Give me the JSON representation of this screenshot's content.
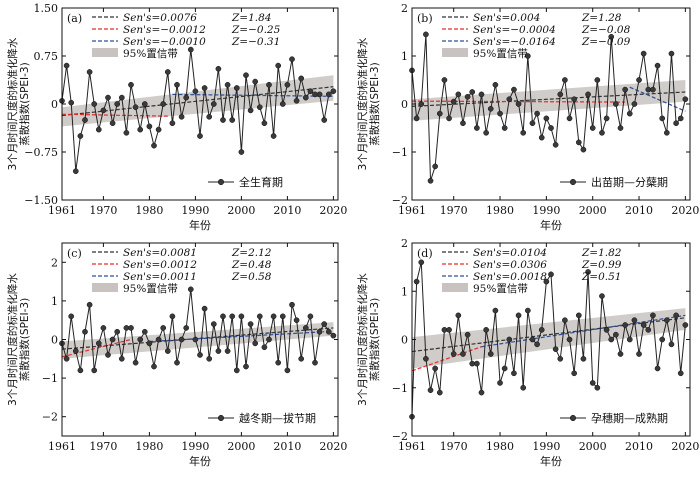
{
  "chart_data": [
    {
      "type": "line",
      "panel_label": "(a)",
      "xlabel": "年份",
      "ylabel": [
        "3个月时间尺度的标准化降水",
        "蒸散指数(SPEI-3)"
      ],
      "xlim": [
        1961,
        2021
      ],
      "ylim": [
        -1.5,
        1.5
      ],
      "xticks": [
        1961,
        1970,
        1980,
        1990,
        2000,
        2010,
        2020
      ],
      "xtick_labels": [
        "1961",
        "1970",
        "1980",
        "1990",
        "2000",
        "2010",
        "2020"
      ],
      "yticks": [
        -1.5,
        -0.75,
        0,
        0.75,
        1.5
      ],
      "ytick_labels": [
        "−1.50",
        "−0.75",
        "0",
        "0.75",
        "1.50"
      ],
      "series_name": "全生育期",
      "x": [
        1961,
        1962,
        1963,
        1964,
        1965,
        1966,
        1967,
        1968,
        1969,
        1970,
        1971,
        1972,
        1973,
        1974,
        1975,
        1976,
        1977,
        1978,
        1979,
        1980,
        1981,
        1982,
        1983,
        1984,
        1985,
        1986,
        1987,
        1988,
        1989,
        1990,
        1991,
        1992,
        1993,
        1994,
        1995,
        1996,
        1997,
        1998,
        1999,
        2000,
        2001,
        2002,
        2003,
        2004,
        2005,
        2006,
        2007,
        2008,
        2009,
        2010,
        2011,
        2012,
        2013,
        2014,
        2015,
        2016,
        2017,
        2018,
        2019,
        2020
      ],
      "y": [
        0.05,
        0.6,
        0.02,
        -1.05,
        -0.5,
        -0.25,
        0.5,
        0.0,
        -0.4,
        -0.1,
        0.1,
        -0.3,
        0.0,
        0.1,
        -0.45,
        0.3,
        -0.05,
        -0.4,
        0.0,
        -0.35,
        -0.65,
        -0.4,
        0.0,
        0.5,
        -0.3,
        0.3,
        -0.2,
        0.1,
        0.85,
        0.2,
        -0.5,
        0.25,
        -0.2,
        0.0,
        0.55,
        -0.25,
        0.3,
        -0.25,
        0.25,
        -0.75,
        0.45,
        -0.1,
        0.35,
        -0.05,
        -0.3,
        0.3,
        -0.5,
        0.6,
        0.0,
        0.3,
        0.7,
        0.05,
        0.4,
        0.1,
        0.2,
        0.15,
        0.15,
        -0.25,
        0.15,
        0.2
      ],
      "legend": [
        {
          "name": "Sen's=0.0076",
          "z": "Z=1.84",
          "color": "#333333"
        },
        {
          "name": "Sen's=−0.0012",
          "z": "Z=−0.25",
          "color": "#e0302b"
        },
        {
          "name": "Sen's=−0.0010",
          "z": "Z=−0.31",
          "color": "#2c4f9e"
        }
      ],
      "trends": [
        {
          "color": "#333333",
          "x": [
            1961,
            2020
          ],
          "y": [
            -0.18,
            0.27
          ]
        },
        {
          "color": "#e0302b",
          "x": [
            1961,
            1984
          ],
          "y": [
            -0.16,
            -0.19
          ]
        },
        {
          "color": "#2c4f9e",
          "x": [
            1985,
            2020
          ],
          "y": [
            0.15,
            0.12
          ]
        }
      ],
      "ci_band": {
        "label": "95%置信带",
        "x": [
          1961,
          2020
        ],
        "low": [
          -0.35,
          0.05
        ],
        "high": [
          -0.05,
          0.45
        ]
      }
    },
    {
      "type": "line",
      "panel_label": "(b)",
      "xlabel": "年份",
      "ylabel": [
        "3个月时间尺度的标准化降水",
        "蒸散指数(SPEI-3)"
      ],
      "xlim": [
        1961,
        2021
      ],
      "ylim": [
        -2.0,
        2.0
      ],
      "xticks": [
        1961,
        1970,
        1980,
        1990,
        2000,
        2010,
        2020
      ],
      "xtick_labels": [
        "1961",
        "1970",
        "1980",
        "1990",
        "2000",
        "2010",
        "2020"
      ],
      "yticks": [
        -2,
        -1,
        0,
        1,
        2
      ],
      "ytick_labels": [
        "−2",
        "−1",
        "0",
        "1",
        "2"
      ],
      "series_name": "出苗期—分蘖期",
      "x": [
        1961,
        1962,
        1963,
        1964,
        1965,
        1966,
        1967,
        1968,
        1969,
        1970,
        1971,
        1972,
        1973,
        1974,
        1975,
        1976,
        1977,
        1978,
        1979,
        1980,
        1981,
        1982,
        1983,
        1984,
        1985,
        1986,
        1987,
        1988,
        1989,
        1990,
        1991,
        1992,
        1993,
        1994,
        1995,
        1996,
        1997,
        1998,
        1999,
        2000,
        2001,
        2002,
        2003,
        2004,
        2005,
        2006,
        2007,
        2008,
        2009,
        2010,
        2011,
        2012,
        2013,
        2014,
        2015,
        2016,
        2017,
        2018,
        2019,
        2020
      ],
      "y": [
        0.7,
        -0.3,
        0.0,
        1.45,
        -1.6,
        -1.3,
        -0.2,
        0.5,
        -0.3,
        0.05,
        0.2,
        -0.4,
        0.15,
        0.25,
        -0.5,
        0.2,
        -0.6,
        -0.1,
        0.4,
        -0.2,
        -0.5,
        0.1,
        0.3,
        0.0,
        -0.6,
        1.0,
        -0.4,
        -0.2,
        -0.7,
        -0.3,
        -0.5,
        -0.85,
        0.2,
        0.5,
        -0.3,
        0.1,
        -0.8,
        -0.95,
        0.2,
        -0.5,
        0.5,
        -0.6,
        -0.3,
        1.4,
        0.0,
        -0.5,
        0.3,
        -0.2,
        0.0,
        0.5,
        1.05,
        0.3,
        0.3,
        0.8,
        -0.3,
        -0.6,
        1.05,
        -0.4,
        -0.3,
        0.1
      ],
      "legend": [
        {
          "name": "Sen's=0.004",
          "z": "Z=1.28",
          "color": "#333333"
        },
        {
          "name": "Sen's=−0.0004",
          "z": "Z=−0.08",
          "color": "#e0302b"
        },
        {
          "name": "Sen's=−0.0164",
          "z": "Z=−0.09",
          "color": "#2c4f9e"
        }
      ],
      "trends": [
        {
          "color": "#333333",
          "x": [
            1961,
            2020
          ],
          "y": [
            -0.05,
            0.25
          ]
        },
        {
          "color": "#e0302b",
          "x": [
            1961,
            2007
          ],
          "y": [
            0.06,
            0.04
          ]
        },
        {
          "color": "#2c4f9e",
          "x": [
            2008,
            2020
          ],
          "y": [
            0.35,
            -0.15
          ]
        }
      ],
      "ci_band": {
        "label": "95%置信带",
        "x": [
          1961,
          2020
        ],
        "low": [
          -0.35,
          0.05
        ],
        "high": [
          0.1,
          0.5
        ]
      }
    },
    {
      "type": "line",
      "panel_label": "(c)",
      "xlabel": "年份",
      "ylabel": [
        "3个月时间尺度的标准化降水",
        "蒸散指数(SPEI-3)"
      ],
      "xlim": [
        1961,
        2021
      ],
      "ylim": [
        -2.5,
        2.5
      ],
      "xticks": [
        1961,
        1970,
        1980,
        1990,
        2000,
        2010,
        2020
      ],
      "xtick_labels": [
        "1961",
        "1970",
        "1980",
        "1990",
        "2000",
        "2010",
        "2020"
      ],
      "yticks": [
        -2,
        -1,
        0,
        1,
        2
      ],
      "ytick_labels": [
        "−2",
        "−1",
        "0",
        "1",
        "2"
      ],
      "series_name": "越冬期—拔节期",
      "x": [
        1961,
        1962,
        1963,
        1964,
        1965,
        1966,
        1967,
        1968,
        1969,
        1970,
        1971,
        1972,
        1973,
        1974,
        1975,
        1976,
        1977,
        1978,
        1979,
        1980,
        1981,
        1982,
        1983,
        1984,
        1985,
        1986,
        1987,
        1988,
        1989,
        1990,
        1991,
        1992,
        1993,
        1994,
        1995,
        1996,
        1997,
        1998,
        1999,
        2000,
        2001,
        2002,
        2003,
        2004,
        2005,
        2006,
        2007,
        2008,
        2009,
        2010,
        2011,
        2012,
        2013,
        2014,
        2015,
        2016,
        2017,
        2018,
        2019,
        2020
      ],
      "y": [
        -0.1,
        -0.5,
        0.6,
        -0.3,
        -0.8,
        0.2,
        0.9,
        -0.8,
        -0.1,
        0.3,
        -0.4,
        0.0,
        0.2,
        -0.5,
        0.3,
        0.3,
        -0.6,
        0.0,
        0.2,
        -0.1,
        -0.7,
        0.0,
        0.3,
        -0.3,
        0.6,
        -0.6,
        0.0,
        0.3,
        1.3,
        0.0,
        -0.4,
        0.8,
        -0.5,
        0.4,
        -0.3,
        0.6,
        -0.3,
        0.6,
        -0.8,
        0.6,
        -0.7,
        0.4,
        -0.1,
        0.6,
        -0.2,
        0.0,
        0.6,
        -0.6,
        0.6,
        -0.8,
        0.9,
        0.5,
        -0.5,
        0.3,
        0.6,
        -0.6,
        0.2,
        0.4,
        0.2,
        0.1
      ],
      "legend": [
        {
          "name": "Sen's=0.0081",
          "z": "Z=2.12",
          "color": "#333333"
        },
        {
          "name": "Sen's=0.0012",
          "z": "Z=0.48",
          "color": "#e0302b"
        },
        {
          "name": "Sen's=0.0011",
          "z": "Z=0.58",
          "color": "#2c4f9e"
        }
      ],
      "trends": [
        {
          "color": "#333333",
          "x": [
            1961,
            2020
          ],
          "y": [
            -0.25,
            0.3
          ]
        },
        {
          "color": "#e0302b",
          "x": [
            1961,
            1976
          ],
          "y": [
            -0.45,
            0.0
          ]
        },
        {
          "color": "#2c4f9e",
          "x": [
            1980,
            2018
          ],
          "y": [
            -0.05,
            0.2
          ]
        }
      ],
      "ci_band": {
        "label": "95%置信带",
        "x": [
          1961,
          2020
        ],
        "low": [
          -0.5,
          0.1
        ],
        "high": [
          -0.05,
          0.45
        ]
      }
    },
    {
      "type": "line",
      "panel_label": "(d)",
      "xlabel": "年份",
      "ylabel": [
        "3个月时间尺度的标准化降水",
        "蒸散指数(SPEI-3)"
      ],
      "xlim": [
        1961,
        2021
      ],
      "ylim": [
        -2.0,
        2.0
      ],
      "xticks": [
        1961,
        1970,
        1980,
        1990,
        2000,
        2010,
        2020
      ],
      "xtick_labels": [
        "1961",
        "1970",
        "1980",
        "1990",
        "2000",
        "2010",
        "2020"
      ],
      "yticks": [
        -2,
        -1,
        0,
        1,
        2
      ],
      "ytick_labels": [
        "−2",
        "−1",
        "0",
        "1",
        "2"
      ],
      "series_name": "孕穗期—成熟期",
      "x": [
        1961,
        1962,
        1963,
        1964,
        1965,
        1966,
        1967,
        1968,
        1969,
        1970,
        1971,
        1972,
        1973,
        1974,
        1975,
        1976,
        1977,
        1978,
        1979,
        1980,
        1981,
        1982,
        1983,
        1984,
        1985,
        1986,
        1987,
        1988,
        1989,
        1990,
        1991,
        1992,
        1993,
        1994,
        1995,
        1996,
        1997,
        1998,
        1999,
        2000,
        2001,
        2002,
        2003,
        2004,
        2005,
        2006,
        2007,
        2008,
        2009,
        2010,
        2011,
        2012,
        2013,
        2014,
        2015,
        2016,
        2017,
        2018,
        2019,
        2020
      ],
      "y": [
        -1.6,
        1.2,
        1.6,
        -0.4,
        -1.05,
        -0.6,
        -1.1,
        0.2,
        0.2,
        -0.3,
        0.5,
        -0.3,
        0.1,
        -0.5,
        -0.5,
        -1.1,
        0.2,
        -0.3,
        0.6,
        -0.9,
        -0.6,
        0.0,
        -0.7,
        0.5,
        -1.0,
        0.6,
        0.0,
        -0.1,
        0.2,
        1.2,
        1.35,
        -0.2,
        -0.4,
        0.4,
        0.0,
        -0.7,
        0.5,
        -0.4,
        1.4,
        -0.9,
        -1.0,
        0.9,
        0.2,
        0.0,
        0.1,
        -0.3,
        0.3,
        0.0,
        0.4,
        -0.3,
        0.3,
        0.2,
        0.5,
        -0.6,
        0.0,
        0.4,
        -0.1,
        0.5,
        -0.7,
        0.3
      ],
      "legend": [
        {
          "name": "Sen's=0.0104",
          "z": "Z=1.82",
          "color": "#333333"
        },
        {
          "name": "Sen's=0.0306",
          "z": "Z=0.99",
          "color": "#e0302b"
        },
        {
          "name": "Sen's=0.0018",
          "z": "Z=0.51",
          "color": "#2c4f9e"
        }
      ],
      "trends": [
        {
          "color": "#333333",
          "x": [
            1961,
            2020
          ],
          "y": [
            -0.25,
            0.45
          ]
        },
        {
          "color": "#e0302b",
          "x": [
            1961,
            1976
          ],
          "y": [
            -0.65,
            -0.15
          ]
        },
        {
          "color": "#2c4f9e",
          "x": [
            1976,
            2020
          ],
          "y": [
            -0.15,
            0.5
          ]
        }
      ],
      "ci_band": {
        "label": "95%置信带",
        "x": [
          1961,
          2020
        ],
        "low": [
          -0.6,
          0.2
        ],
        "high": [
          0.05,
          0.65
        ]
      }
    }
  ]
}
